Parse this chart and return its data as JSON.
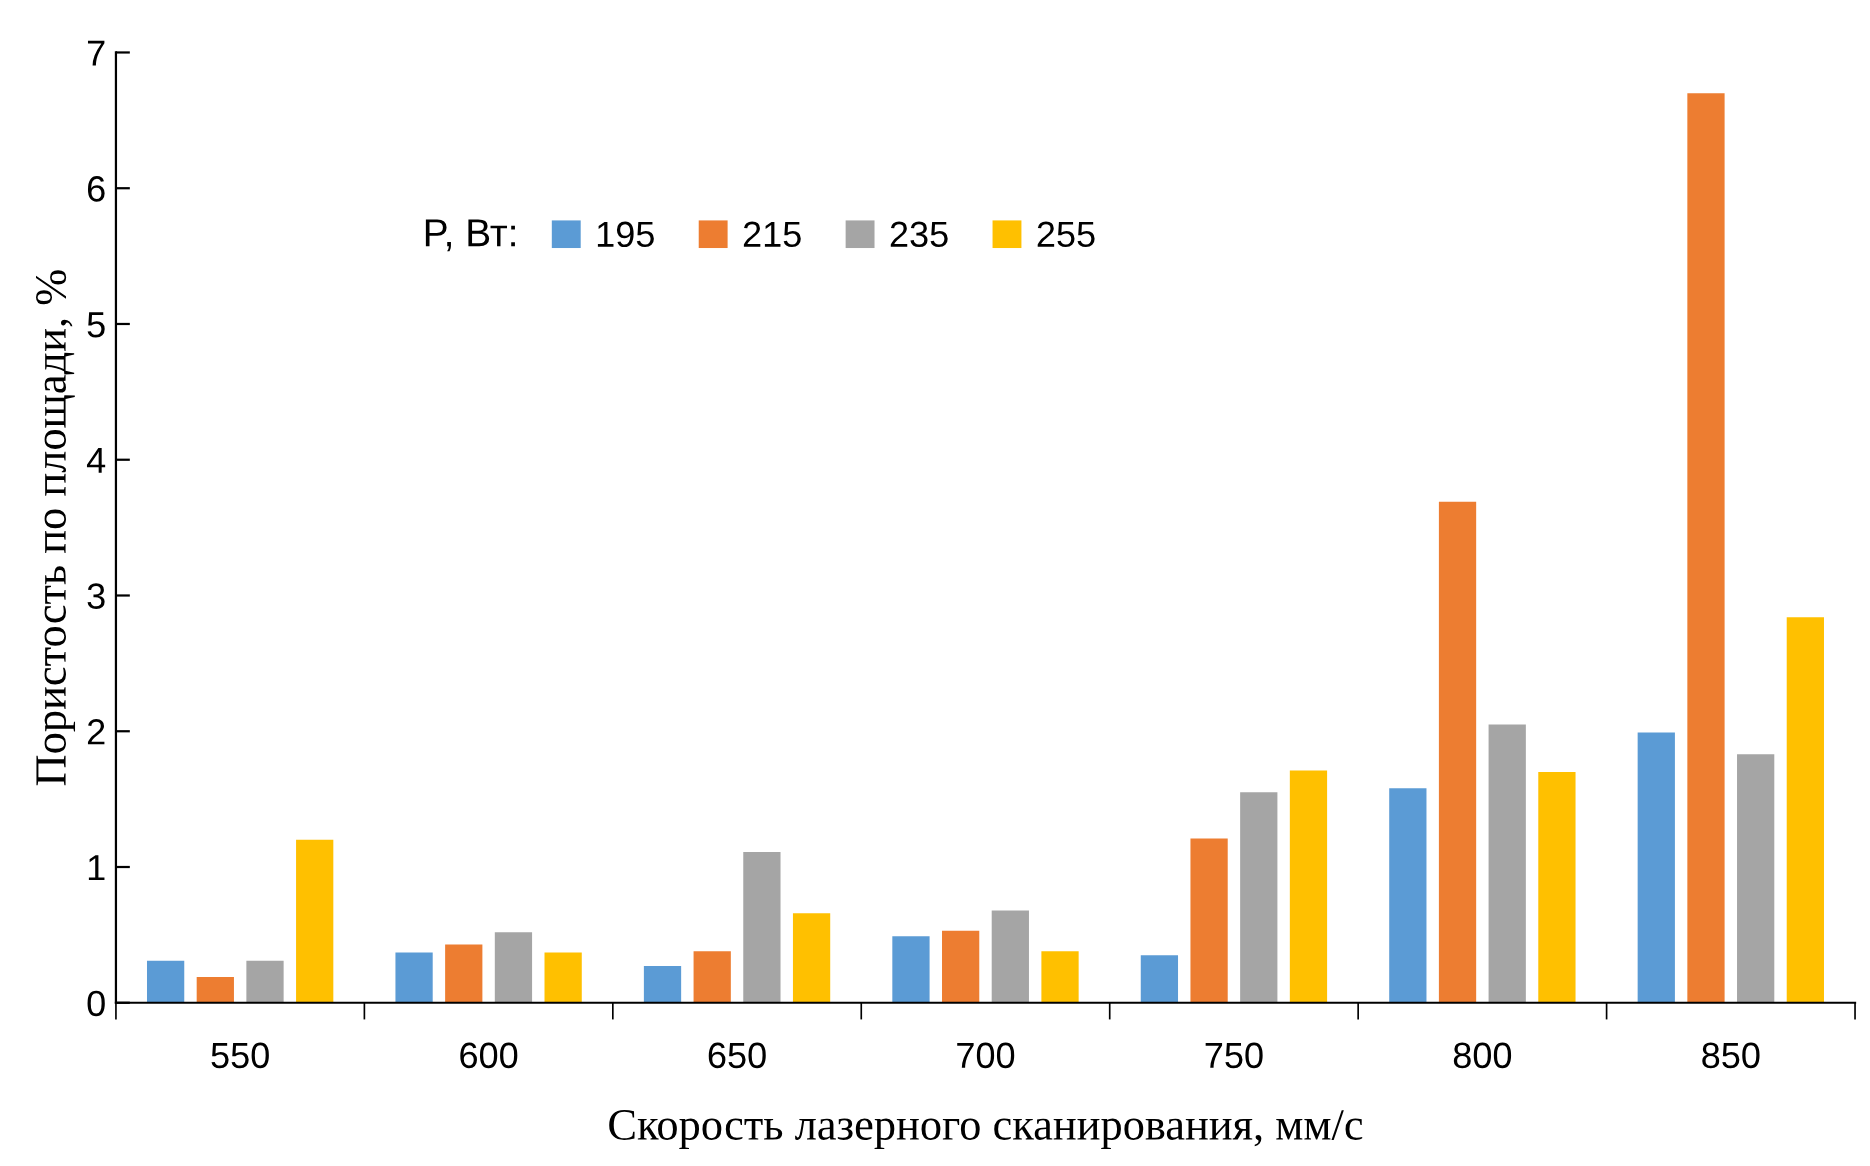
{
  "chart_data": {
    "type": "bar",
    "xlabel": "Скорость лазерного сканирования, мм/с",
    "ylabel": "Пористость по площади, %",
    "legend_title": "P, Вт:",
    "categories": [
      "550",
      "600",
      "650",
      "700",
      "750",
      "800",
      "850"
    ],
    "series": [
      {
        "name": "195",
        "color": "#5b9bd5",
        "values": [
          0.31,
          0.37,
          0.27,
          0.49,
          0.35,
          1.58,
          1.99
        ]
      },
      {
        "name": "215",
        "color": "#ed7d31",
        "values": [
          0.19,
          0.43,
          0.38,
          0.53,
          1.21,
          3.69,
          6.7
        ]
      },
      {
        "name": "235",
        "color": "#a5a5a5",
        "values": [
          0.31,
          0.52,
          1.11,
          0.68,
          1.55,
          2.05,
          1.83
        ]
      },
      {
        "name": "255",
        "color": "#ffc000",
        "values": [
          1.2,
          0.37,
          0.66,
          0.38,
          1.71,
          1.7,
          2.84
        ]
      }
    ],
    "ylim": [
      0,
      7
    ],
    "yticks": [
      0,
      1,
      2,
      3,
      4,
      5,
      6,
      7
    ],
    "legend": "top",
    "grid": false
  }
}
